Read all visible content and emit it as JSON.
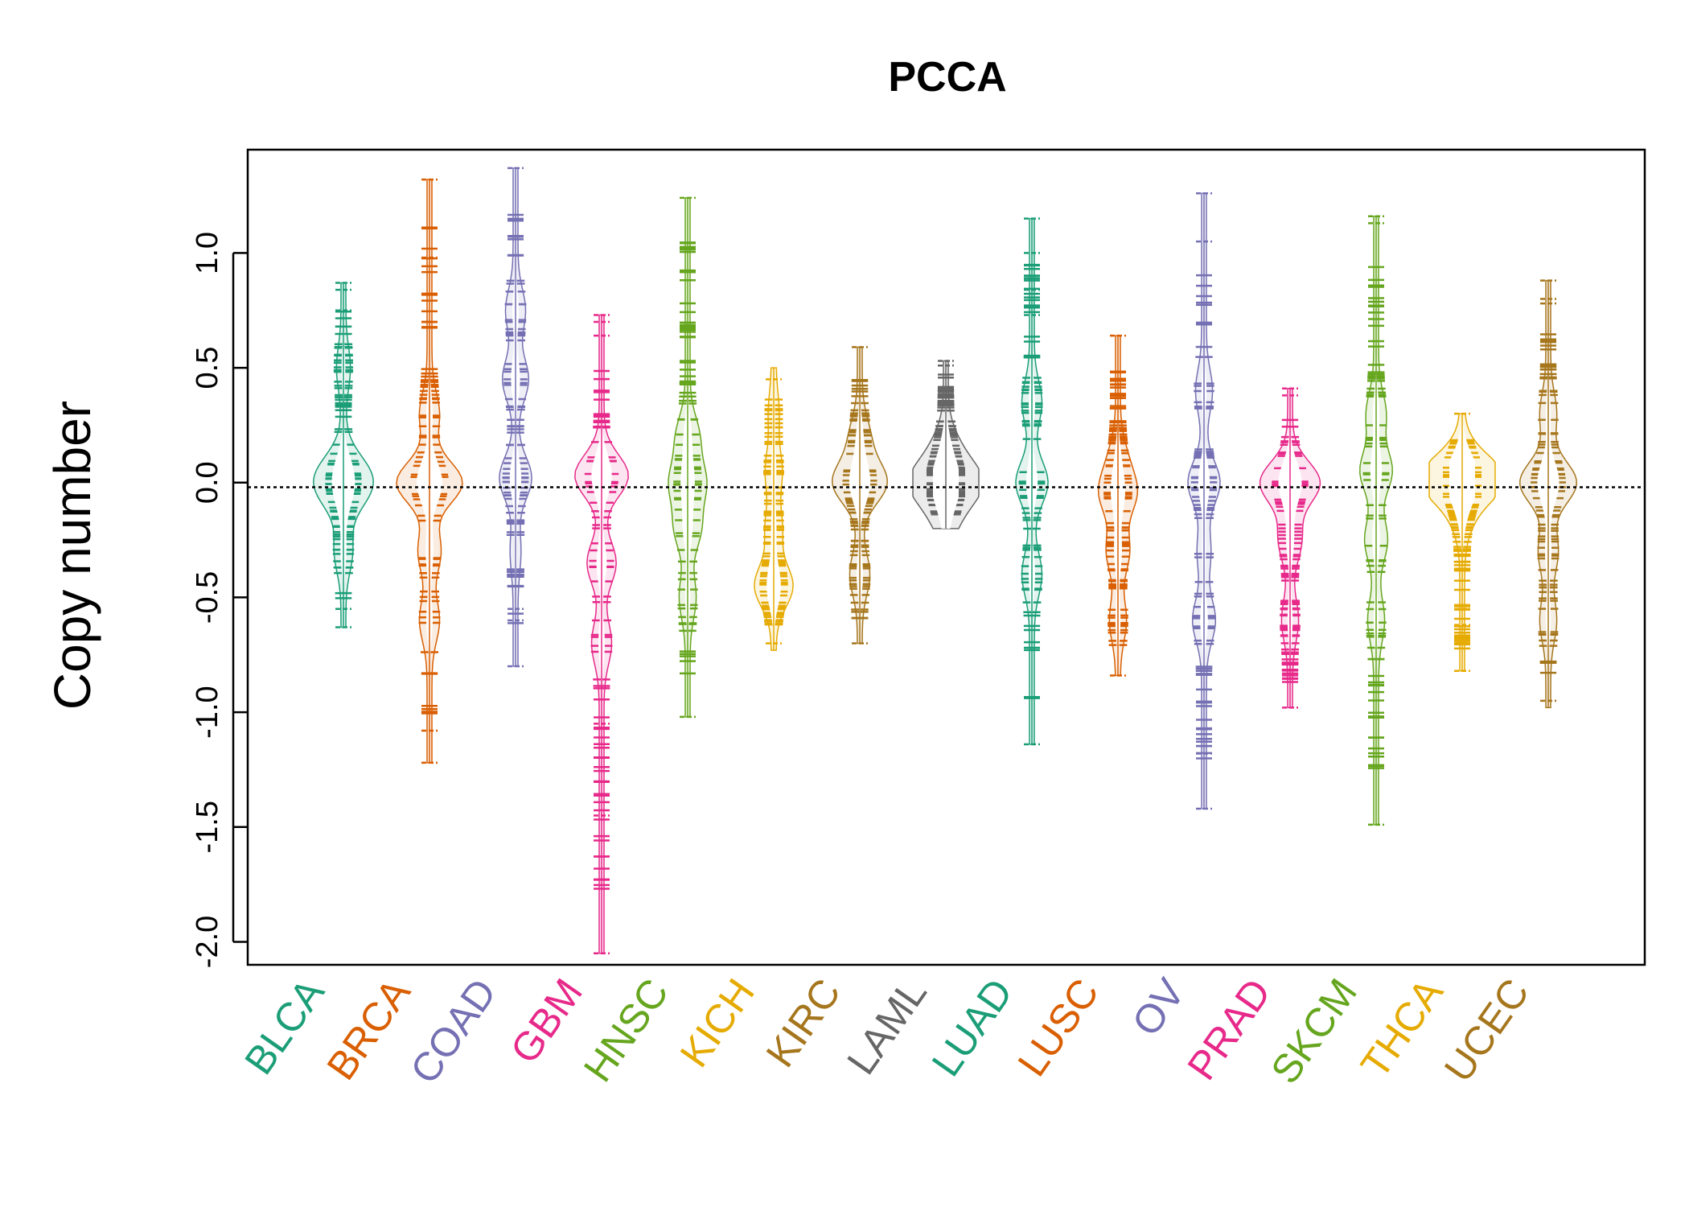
{
  "chart_data": {
    "type": "beanplot",
    "title": "PCCA",
    "xlabel": "",
    "ylabel": "Copy number",
    "ylim": [
      -2.1,
      1.45
    ],
    "yticks": [
      -2.0,
      -1.5,
      -1.0,
      -0.5,
      0.0,
      0.5,
      1.0
    ],
    "yticklabels": [
      "-2.0",
      "-1.5",
      "-1.0",
      "-0.5",
      "0.0",
      "0.5",
      "1.0"
    ],
    "reference_line": -0.02,
    "categories": [
      "BLCA",
      "BRCA",
      "COAD",
      "GBM",
      "HNSC",
      "KICH",
      "KIRC",
      "LAML",
      "LUAD",
      "LUSC",
      "OV",
      "PRAD",
      "SKCM",
      "THCA",
      "UCEC"
    ],
    "colors": [
      "#1b9e77",
      "#d95f02",
      "#7570b3",
      "#e7298a",
      "#66a61e",
      "#e6ab02",
      "#a6761d",
      "#666666",
      "#1b9e77",
      "#d95f02",
      "#7570b3",
      "#e7298a",
      "#66a61e",
      "#e6ab02",
      "#a6761d"
    ],
    "series": [
      {
        "category": "BLCA",
        "min": -0.63,
        "max": 0.87,
        "outliers": [
          0.87,
          0.84,
          0.75,
          0.68,
          -0.55,
          -0.63
        ],
        "peaks": [
          [
            0.05,
            0.55
          ],
          [
            -0.05,
            0.5
          ],
          [
            0.5,
            0.15
          ],
          [
            -0.3,
            0.22
          ]
        ]
      },
      {
        "category": "BRCA",
        "min": -1.22,
        "max": 1.32,
        "outliers": [
          1.32,
          0.98,
          -1.08,
          -1.22
        ],
        "peaks": [
          [
            0.0,
            1.0
          ],
          [
            0.3,
            0.25
          ],
          [
            -0.3,
            0.3
          ],
          [
            -0.6,
            0.25
          ]
        ]
      },
      {
        "category": "COAD",
        "min": -0.8,
        "max": 1.37,
        "outliers": [
          1.37,
          -0.55,
          -0.6,
          -0.8
        ],
        "peaks": [
          [
            0.02,
            0.45
          ],
          [
            0.45,
            0.35
          ],
          [
            0.75,
            0.25
          ],
          [
            -0.3,
            0.1
          ]
        ]
      },
      {
        "category": "GBM",
        "min": -2.05,
        "max": 0.73,
        "outliers": [
          0.73,
          0.7,
          0.64,
          -1.05,
          -1.45,
          -2.05
        ],
        "peaks": [
          [
            0.03,
            0.8
          ],
          [
            -0.35,
            0.4
          ],
          [
            -0.7,
            0.25
          ]
        ]
      },
      {
        "category": "HNSC",
        "min": -1.02,
        "max": 1.24,
        "outliers": [
          1.24,
          -1.02
        ],
        "peaks": [
          [
            0.0,
            0.5
          ],
          [
            0.2,
            0.3
          ],
          [
            -0.2,
            0.35
          ],
          [
            -0.5,
            0.2
          ]
        ]
      },
      {
        "category": "KICH",
        "min": -0.73,
        "max": 0.5,
        "outliers": [
          0.45,
          -0.7
        ],
        "peaks": [
          [
            -0.45,
            0.55
          ],
          [
            -0.2,
            0.2
          ],
          [
            0.05,
            0.2
          ],
          [
            0.3,
            0.1
          ]
        ]
      },
      {
        "category": "KIRC",
        "min": -0.7,
        "max": 0.59,
        "outliers": [
          0.59,
          -0.7
        ],
        "peaks": [
          [
            0.0,
            0.8
          ],
          [
            0.2,
            0.25
          ],
          [
            -0.4,
            0.25
          ]
        ]
      },
      {
        "category": "LAML",
        "min": -0.2,
        "max": 0.53,
        "outliers": [
          0.53,
          0.51
        ],
        "peaks": [
          [
            0.0,
            1.0
          ],
          [
            0.15,
            0.3
          ],
          [
            -0.15,
            0.3
          ]
        ]
      },
      {
        "category": "LUAD",
        "min": -1.14,
        "max": 1.15,
        "outliers": [
          1.15,
          1.0,
          0.84,
          0.77,
          0.73,
          -1.14
        ],
        "peaks": [
          [
            0.0,
            0.45
          ],
          [
            0.35,
            0.25
          ],
          [
            -0.4,
            0.25
          ]
        ]
      },
      {
        "category": "LUSC",
        "min": -0.84,
        "max": 0.64,
        "outliers": [
          0.64,
          -0.84
        ],
        "peaks": [
          [
            -0.05,
            0.5
          ],
          [
            -0.3,
            0.3
          ],
          [
            0.1,
            0.2
          ],
          [
            -0.6,
            0.2
          ]
        ]
      },
      {
        "category": "OV",
        "min": -1.42,
        "max": 1.26,
        "outliers": [
          1.26,
          1.05,
          -1.18,
          -1.42
        ],
        "peaks": [
          [
            0.0,
            0.45
          ],
          [
            0.4,
            0.2
          ],
          [
            -0.6,
            0.3
          ],
          [
            -0.3,
            0.15
          ]
        ]
      },
      {
        "category": "PRAD",
        "min": -0.98,
        "max": 0.41,
        "outliers": [
          0.41,
          0.38,
          -0.98
        ],
        "peaks": [
          [
            0.0,
            0.9
          ],
          [
            -0.25,
            0.3
          ],
          [
            -0.6,
            0.2
          ]
        ]
      },
      {
        "category": "SKCM",
        "min": -1.49,
        "max": 1.16,
        "outliers": [
          1.16,
          1.13,
          -1.49
        ],
        "peaks": [
          [
            0.05,
            0.45
          ],
          [
            0.3,
            0.25
          ],
          [
            -0.25,
            0.3
          ],
          [
            -0.6,
            0.2
          ]
        ]
      },
      {
        "category": "THCA",
        "min": -0.82,
        "max": 0.3,
        "outliers": [
          0.3,
          -0.55,
          -0.62,
          -0.7,
          -0.82
        ],
        "peaks": [
          [
            0.0,
            1.0
          ],
          [
            0.08,
            0.4
          ],
          [
            -0.15,
            0.2
          ]
        ]
      },
      {
        "category": "UCEC",
        "min": -0.98,
        "max": 0.88,
        "outliers": [
          0.88,
          0.8,
          0.78,
          -0.95
        ],
        "peaks": [
          [
            0.0,
            0.85
          ],
          [
            0.3,
            0.2
          ],
          [
            -0.3,
            0.25
          ],
          [
            -0.6,
            0.2
          ]
        ]
      }
    ]
  }
}
